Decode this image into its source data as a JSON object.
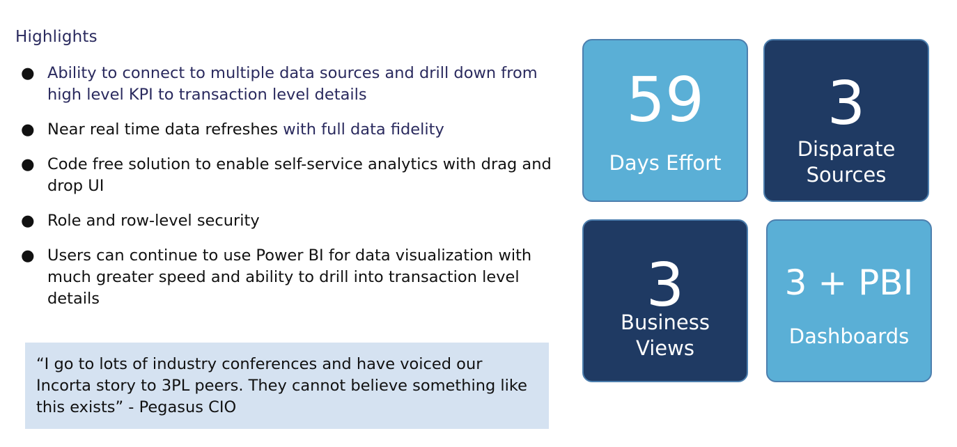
{
  "highlights": {
    "heading": "Highlights",
    "bullets": [
      {
        "text": "Ability to connect to multiple data sources and drill down from high level KPI to transaction level details"
      },
      {
        "text_a": "Near real time data refreshes ",
        "text_b": "with full data fidelity"
      },
      {
        "text": "Code free solution to enable self-service analytics with drag and drop UI"
      },
      {
        "text": "Role and row-level security"
      },
      {
        "text": "Users can continue to use Power BI for data visualization with much greater speed and ability to drill into transaction level details"
      }
    ],
    "bullet_symbol": "●"
  },
  "quote": {
    "text": "“I go to lots of industry conferences and have voiced our Incorta story to 3PL peers. They cannot believe something like this exists” - Pegasus CIO"
  },
  "tiles": [
    {
      "value": "59",
      "label": "Days Effort",
      "color": "#5aafd6"
    },
    {
      "value": "3",
      "label_line1": "Disparate",
      "label_line2": "Sources",
      "color": "#1f3a63"
    },
    {
      "value": "3",
      "label_line1": "Business",
      "label_line2": "Views",
      "color": "#1f3a63"
    },
    {
      "value": "3 + PBI",
      "label": "Dashboards",
      "color": "#5aafd6"
    }
  ]
}
